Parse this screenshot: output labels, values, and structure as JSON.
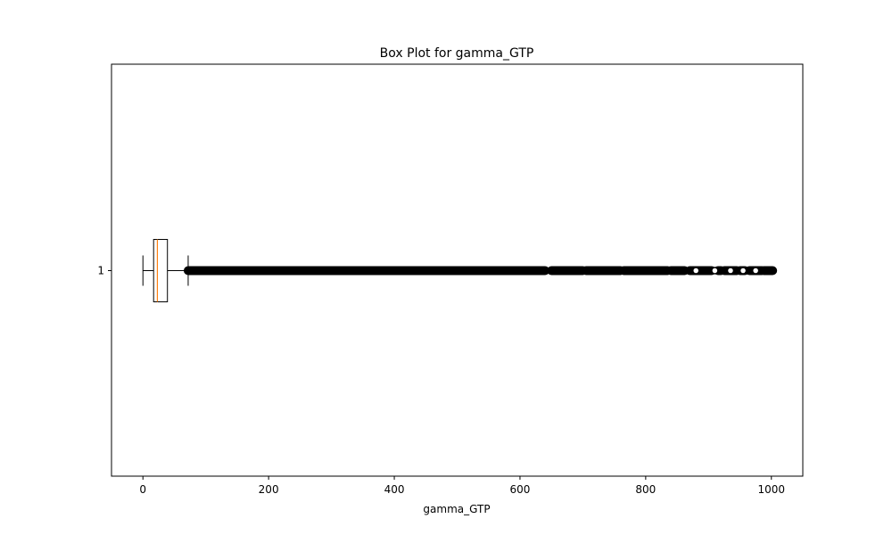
{
  "chart_data": {
    "type": "box",
    "orientation": "horizontal",
    "title": "Box Plot for gamma_GTP",
    "xlabel": "gamma_GTP",
    "ylabel": "",
    "xlim": [
      -50,
      1050
    ],
    "x_ticks": [
      0,
      200,
      400,
      600,
      800,
      1000
    ],
    "categories": [
      "1"
    ],
    "series": [
      {
        "whisker_low": 0,
        "q1": 17,
        "median": 23,
        "q3": 39,
        "whisker_high": 72,
        "outlier_range": [
          72,
          1002
        ],
        "outlier_segments": [
          [
            72,
            640
          ],
          [
            650,
            700
          ],
          [
            705,
            760
          ],
          [
            765,
            835
          ],
          [
            840,
            862
          ],
          [
            870,
            905
          ],
          [
            915,
            920
          ],
          [
            925,
            945
          ],
          [
            950,
            958
          ],
          [
            965,
            985
          ],
          [
            988,
            1002
          ]
        ]
      }
    ],
    "colors": {
      "median": "#ff7f0e",
      "box": "#000000",
      "outlier": "#000000"
    },
    "grid": false,
    "legend": "none"
  }
}
